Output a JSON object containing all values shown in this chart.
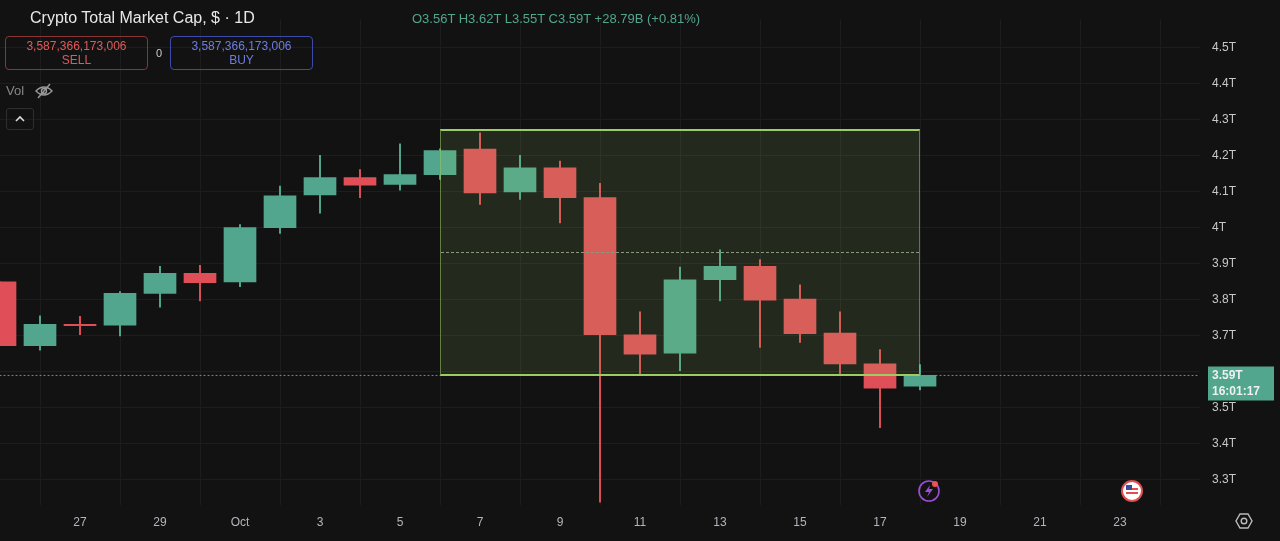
{
  "chart_data": {
    "type": "candlestick",
    "title": "Crypto Total Market Cap, $ · 1D",
    "subtitle": "O3.56T H3.62T L3.55T C3.59T +28.79B (+0.81%)",
    "x": [
      "--09-25",
      "--09-26",
      "--09-27",
      "--09-28",
      "--09-29",
      "--09-30",
      "--10-01",
      "--10-02",
      "--10-03",
      "--10-04",
      "--10-05",
      "--10-06",
      "--10-07",
      "--10-08",
      "--10-09",
      "--10-10",
      "--10-11",
      "--10-12",
      "--10-13",
      "--10-14",
      "--10-15",
      "--10-16",
      "--10-17",
      "--10-18"
    ],
    "ohlc": [
      [
        3.85,
        3.85,
        3.673,
        3.673
      ],
      [
        3.673,
        3.756,
        3.66,
        3.732
      ],
      [
        3.732,
        3.754,
        3.703,
        3.728
      ],
      [
        3.73,
        3.823,
        3.7,
        3.818
      ],
      [
        3.818,
        3.893,
        3.78,
        3.874
      ],
      [
        3.874,
        3.896,
        3.797,
        3.848
      ],
      [
        3.85,
        4.009,
        3.837,
        4.001
      ],
      [
        4.001,
        4.116,
        3.985,
        4.089
      ],
      [
        4.092,
        4.202,
        4.041,
        4.14
      ],
      [
        4.14,
        4.162,
        4.084,
        4.119
      ],
      [
        4.121,
        4.234,
        4.105,
        4.148
      ],
      [
        4.148,
        4.22,
        4.135,
        4.215
      ],
      [
        4.219,
        4.264,
        4.065,
        4.097
      ],
      [
        4.1,
        4.202,
        4.079,
        4.167
      ],
      [
        4.167,
        4.186,
        4.014,
        4.084
      ],
      [
        4.084,
        4.124,
        3.238,
        3.703
      ],
      [
        3.703,
        3.767,
        3.593,
        3.649
      ],
      [
        3.652,
        3.891,
        3.603,
        3.856
      ],
      [
        3.856,
        3.939,
        3.797,
        3.893
      ],
      [
        3.893,
        3.912,
        3.668,
        3.799
      ],
      [
        3.802,
        3.842,
        3.682,
        3.706
      ],
      [
        3.708,
        3.767,
        3.593,
        3.622
      ],
      [
        3.622,
        3.662,
        3.445,
        3.555
      ],
      [
        3.56,
        3.62,
        3.55,
        3.59
      ]
    ],
    "colors": [
      "#e04f58",
      "#52a68e",
      "#e04f58",
      "#52a68e",
      "#52a68e",
      "#e04f58",
      "#52a68e",
      "#52a68e",
      "#52a68e",
      "#e04f58",
      "#52a68e",
      "#52a68e",
      "#e04f58",
      "#52a68e",
      "#e04f58",
      "#e04f58",
      "#e04f58",
      "#52a68e",
      "#52a68e",
      "#e04f58",
      "#e04f58",
      "#e04f58",
      "#e04f58",
      "#52a68e"
    ],
    "xlim": [
      "--09-25",
      "--10-25"
    ],
    "xticks": [
      {
        "value": "--09-27",
        "label": "27"
      },
      {
        "value": "--09-29",
        "label": "29"
      },
      {
        "value": "--10-01",
        "label": "Oct"
      },
      {
        "value": "--10-03",
        "label": "3"
      },
      {
        "value": "--10-05",
        "label": "5"
      },
      {
        "value": "--10-07",
        "label": "7"
      },
      {
        "value": "--10-09",
        "label": "9"
      },
      {
        "value": "--10-11",
        "label": "11"
      },
      {
        "value": "--10-13",
        "label": "13"
      },
      {
        "value": "--10-15",
        "label": "15"
      },
      {
        "value": "--10-17",
        "label": "17"
      },
      {
        "value": "--10-19",
        "label": "19"
      },
      {
        "value": "--10-21",
        "label": "21"
      },
      {
        "value": "--10-23",
        "label": "23"
      }
    ],
    "ylim": [
      3.23,
      4.58
    ],
    "yticks": [
      {
        "value": 3.3,
        "label": "3.3T"
      },
      {
        "value": 3.4,
        "label": "3.4T"
      },
      {
        "value": 3.5,
        "label": "3.5T"
      },
      {
        "value": 3.6,
        "label": null
      },
      {
        "value": 3.7,
        "label": "3.7T"
      },
      {
        "value": 3.8,
        "label": "3.8T"
      },
      {
        "value": 3.9,
        "label": "3.9T"
      },
      {
        "value": 4.0,
        "label": "4T"
      },
      {
        "value": 4.1,
        "label": "4.1T"
      },
      {
        "value": 4.2,
        "label": "4.2T"
      },
      {
        "value": 4.3,
        "label": "4.3T"
      },
      {
        "value": 4.4,
        "label": "4.4T"
      },
      {
        "value": 4.5,
        "label": "4.5T"
      }
    ],
    "grid": true,
    "legend": false,
    "ref_lines": [
      {
        "axis": "y",
        "value": 3.59,
        "label": "3.59T",
        "line_style": "dotted",
        "color": "#52a68e"
      }
    ],
    "annotations": [
      "3,587,366,173,006\nSELL",
      "0",
      "3,587,366,173,006\nBUY",
      "Vol",
      "16:01:17"
    ]
  }
}
